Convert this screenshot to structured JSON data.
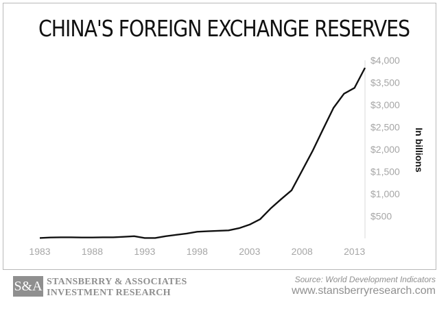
{
  "title": "CHINA'S FOREIGN EXCHANGE RESERVES",
  "footer": {
    "logo_text": "S&A",
    "company_line1": "STANSBERRY & ASSOCIATES",
    "company_line2": "INVESTMENT RESEARCH",
    "source": "Source: World Development Indicators",
    "website": "www.stansberryresearch.com"
  },
  "colors": {
    "line": "#111111",
    "axis_text": "#a6a6a6",
    "grid": "#cfcfcf",
    "footer_gray": "#8f8f8f"
  },
  "chart_data": {
    "type": "line",
    "title": "CHINA'S FOREIGN EXCHANGE RESERVES",
    "xlabel": "",
    "ylabel": "In billions",
    "xlim": [
      1983,
      2014
    ],
    "ylim": [
      0,
      4000
    ],
    "x_ticks": [
      1983,
      1988,
      1993,
      1998,
      2003,
      2008,
      2013
    ],
    "x_tick_labels": [
      "1983",
      "1988",
      "1993",
      "1998",
      "2003",
      "2008",
      "2013"
    ],
    "y_ticks": [
      500,
      1000,
      1500,
      2000,
      2500,
      3000,
      3500,
      4000
    ],
    "y_tick_labels": [
      "$500",
      "$1,000",
      "$1,500",
      "$2,000",
      "$2,500",
      "$3,000",
      "$3,500",
      "$4,000"
    ],
    "y_axis_side": "right",
    "grid": false,
    "series": [
      {
        "x": [
          1983,
          1984,
          1985,
          1986,
          1987,
          1988,
          1989,
          1990,
          1991,
          1992,
          1993,
          1994,
          1995,
          1996,
          1997,
          1998,
          1999,
          2000,
          2001,
          2002,
          2003,
          2004,
          2005,
          2006,
          2007,
          2008,
          2009,
          2010,
          2011,
          2012,
          2013,
          2014
        ],
        "values": [
          10,
          20,
          25,
          25,
          20,
          20,
          25,
          25,
          35,
          50,
          10,
          10,
          50,
          80,
          110,
          150,
          160,
          170,
          180,
          230,
          310,
          430,
          670,
          880,
          1080,
          1520,
          1960,
          2450,
          2930,
          3250,
          3380,
          3830
        ]
      }
    ]
  }
}
